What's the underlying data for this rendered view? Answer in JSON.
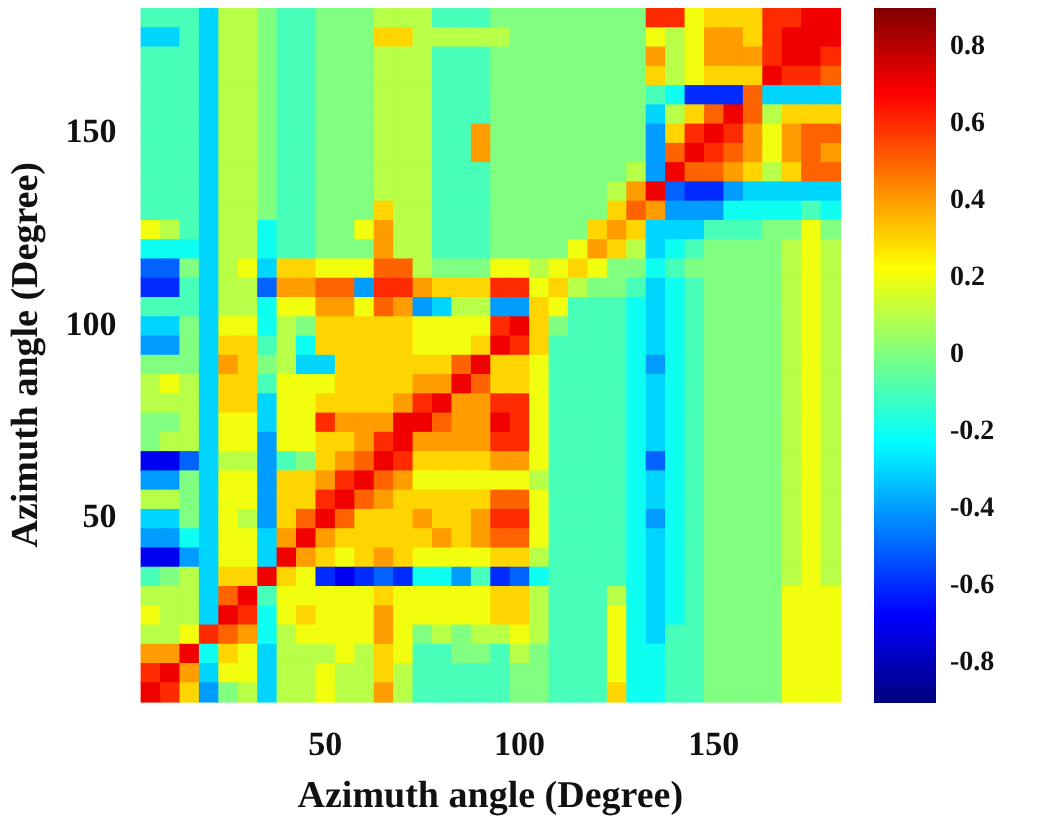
{
  "chart_data": {
    "type": "heatmap",
    "xlabel": "Azimuth angle (Degree)",
    "ylabel": "Azimuth angle (Degree)",
    "categories": [
      null,
      null,
      null,
      null,
      null,
      null,
      null,
      null,
      null,
      "50",
      null,
      null,
      null,
      null,
      null,
      null,
      null,
      null,
      null,
      "100",
      null,
      null,
      null,
      null,
      null,
      null,
      null,
      null,
      null,
      "150",
      null,
      null,
      null,
      null,
      null,
      null
    ],
    "y_categories": [
      null,
      null,
      null,
      null,
      null,
      null,
      "150",
      null,
      null,
      null,
      null,
      null,
      null,
      null,
      null,
      null,
      "100",
      null,
      null,
      null,
      null,
      null,
      null,
      null,
      null,
      null,
      "50",
      null,
      null,
      null,
      null,
      null,
      null,
      null,
      null,
      null
    ],
    "clim": [
      -0.9,
      0.9
    ],
    "cticks": [
      0.8,
      0.6,
      0.4,
      0.2,
      0,
      -0.2,
      -0.4,
      -0.6,
      -0.8
    ],
    "cells": [
      [
        -0.1,
        -0.1,
        -0.1,
        -0.3,
        0.1,
        0.1,
        0,
        -0.1,
        -0.1,
        0,
        0,
        0,
        0.1,
        0.1,
        0.1,
        -0.1,
        -0.1,
        -0.1,
        0,
        0,
        0,
        0,
        0,
        0,
        0,
        0,
        0.6,
        0.6,
        0.2,
        0.3,
        0.3,
        0.3,
        0.6,
        0.6,
        0.7,
        0.7
      ],
      [
        -0.3,
        -0.3,
        -0.1,
        -0.3,
        0.1,
        0.1,
        0,
        -0.1,
        -0.1,
        0,
        0,
        0,
        0.3,
        0.3,
        0.1,
        0.1,
        0.1,
        0.1,
        0.1,
        0,
        0,
        0,
        0,
        0,
        0,
        0,
        0.2,
        0.1,
        0.2,
        0.4,
        0.4,
        0.3,
        0.6,
        0.7,
        0.7,
        0.7
      ],
      [
        -0.1,
        -0.1,
        -0.1,
        -0.3,
        0.1,
        0.1,
        0,
        -0.1,
        -0.1,
        0,
        0,
        0,
        0.1,
        0.1,
        0.1,
        -0.1,
        -0.1,
        -0.1,
        0,
        0,
        0,
        0,
        0,
        0,
        0,
        0,
        0.4,
        0.1,
        0.2,
        0.4,
        0.4,
        0.4,
        0.6,
        0.7,
        0.7,
        0.6
      ],
      [
        -0.1,
        -0.1,
        -0.1,
        -0.3,
        0.1,
        0.1,
        0,
        -0.1,
        -0.1,
        0,
        0,
        0,
        0.1,
        0.1,
        0.1,
        -0.1,
        -0.1,
        -0.1,
        0,
        0,
        0,
        0,
        0,
        0,
        0,
        0,
        0.3,
        0.1,
        0.2,
        0.3,
        0.3,
        0.3,
        0.7,
        0.6,
        0.6,
        0.5
      ],
      [
        -0.1,
        -0.1,
        -0.1,
        -0.3,
        0.1,
        0.1,
        0,
        -0.1,
        -0.1,
        0,
        0,
        0,
        0.1,
        0.1,
        0.1,
        -0.1,
        -0.1,
        -0.1,
        0,
        0,
        0,
        0,
        0,
        0,
        0,
        0,
        -0.1,
        -0.2,
        -0.6,
        -0.6,
        -0.6,
        0.5,
        -0.3,
        -0.3,
        -0.3,
        -0.3
      ],
      [
        -0.1,
        -0.1,
        -0.1,
        -0.3,
        0.1,
        0.1,
        0,
        -0.1,
        -0.1,
        0,
        0,
        0,
        0.1,
        0.1,
        0.1,
        -0.1,
        -0.1,
        -0.1,
        0,
        0,
        0,
        0,
        0,
        0,
        0,
        0,
        -0.3,
        0.1,
        0.3,
        0.5,
        0.7,
        0.5,
        0.1,
        0.3,
        0.3,
        0.3
      ],
      [
        -0.1,
        -0.1,
        -0.1,
        -0.3,
        0.1,
        0.1,
        0,
        -0.1,
        -0.1,
        0,
        0,
        0,
        0.1,
        0.1,
        0.1,
        -0.1,
        -0.1,
        0.4,
        0,
        0,
        0,
        0,
        0,
        0,
        0,
        0,
        -0.4,
        0.3,
        0.6,
        0.7,
        0.6,
        0.4,
        0.2,
        0.4,
        0.5,
        0.5
      ],
      [
        -0.1,
        -0.1,
        -0.1,
        -0.3,
        0.1,
        0.1,
        0,
        -0.1,
        -0.1,
        0,
        0,
        0,
        0.1,
        0.1,
        0.1,
        -0.1,
        -0.1,
        0.4,
        0,
        0,
        0,
        0,
        0,
        0,
        0,
        0,
        -0.4,
        0.5,
        0.7,
        0.6,
        0.5,
        0.4,
        0.2,
        0.4,
        0.5,
        0.4
      ],
      [
        -0.1,
        -0.1,
        -0.1,
        -0.3,
        0.1,
        0.1,
        0,
        -0.1,
        -0.1,
        0,
        0,
        0,
        0.1,
        0.1,
        0.1,
        -0.1,
        -0.1,
        -0.1,
        0,
        0,
        0,
        0,
        0,
        0,
        0,
        0.1,
        -0.4,
        0.7,
        0.5,
        0.5,
        0.4,
        0.3,
        0.1,
        0.3,
        0.5,
        0.5
      ],
      [
        -0.1,
        -0.1,
        -0.1,
        -0.3,
        0.1,
        0.1,
        0,
        -0.1,
        -0.1,
        0,
        0,
        0,
        0.1,
        0.1,
        0.1,
        -0.1,
        -0.1,
        -0.1,
        0,
        0,
        0,
        0,
        0,
        0,
        0.1,
        0.4,
        0.7,
        -0.5,
        -0.6,
        -0.6,
        -0.4,
        -0.3,
        -0.3,
        -0.3,
        -0.3,
        -0.3
      ],
      [
        -0.1,
        -0.1,
        -0.1,
        -0.3,
        0.1,
        0.1,
        0,
        -0.1,
        -0.1,
        0,
        0,
        0,
        0.3,
        0.1,
        0.1,
        -0.1,
        -0.1,
        -0.1,
        0,
        0,
        0,
        0,
        0,
        0,
        0.3,
        0.5,
        0.4,
        -0.4,
        -0.4,
        -0.4,
        -0.2,
        -0.2,
        -0.2,
        -0.2,
        -0.1,
        -0.2
      ],
      [
        0.2,
        0.1,
        -0.1,
        -0.3,
        0.1,
        0.1,
        -0.2,
        -0.1,
        -0.1,
        0,
        0,
        0.2,
        0.4,
        0.1,
        0.1,
        -0.1,
        -0.1,
        -0.1,
        0,
        0,
        0,
        0,
        0,
        0.3,
        0.4,
        0.3,
        -0.3,
        -0.3,
        -0.3,
        -0.1,
        -0.1,
        -0.1,
        0,
        0,
        0.2,
        0
      ],
      [
        -0.2,
        -0.2,
        -0.2,
        -0.3,
        0.1,
        0.1,
        -0.2,
        -0.1,
        -0.1,
        0,
        0,
        0,
        0.4,
        0.1,
        0.1,
        -0.1,
        -0.1,
        -0.1,
        0,
        0,
        0,
        0,
        0.2,
        0.4,
        0.3,
        0.1,
        -0.3,
        -0.2,
        -0.1,
        0,
        0,
        0,
        0,
        0.1,
        0.2,
        0.1
      ],
      [
        -0.5,
        -0.5,
        0,
        -0.3,
        0.1,
        0.2,
        -0.3,
        0.3,
        0.3,
        0.2,
        0.2,
        0.2,
        0.5,
        0.5,
        0.1,
        0,
        0,
        0,
        0.2,
        0.2,
        0.1,
        0.2,
        0.3,
        0.2,
        0,
        0,
        -0.2,
        -0.1,
        0,
        0,
        0,
        0,
        0,
        0.1,
        0.2,
        0.1
      ],
      [
        -0.6,
        -0.6,
        -0.1,
        -0.3,
        0.1,
        0.1,
        -0.5,
        0.4,
        0.4,
        0.5,
        0.5,
        -0.4,
        0.6,
        0.6,
        0.4,
        0.3,
        0.3,
        0.3,
        0.6,
        0.6,
        0.2,
        0.3,
        0.1,
        0,
        0,
        -0.1,
        -0.3,
        -0.2,
        -0.1,
        0,
        0,
        0,
        0,
        0.1,
        0.2,
        0.1
      ],
      [
        -0.1,
        -0.1,
        -0.1,
        -0.3,
        0.1,
        0.1,
        -0.2,
        0.2,
        0.2,
        0.4,
        0.4,
        0.2,
        0.5,
        0.4,
        -0.4,
        -0.3,
        0.1,
        0.1,
        -0.4,
        -0.4,
        0.3,
        0.2,
        -0.1,
        -0.1,
        -0.1,
        -0.2,
        -0.3,
        -0.2,
        -0.1,
        0,
        0,
        0,
        0,
        0.1,
        0.2,
        0.1
      ],
      [
        -0.3,
        -0.3,
        0,
        -0.3,
        0.2,
        0.2,
        -0.2,
        0.1,
        0,
        0.3,
        0.3,
        0.3,
        0.3,
        0.3,
        0.2,
        0.2,
        0.2,
        0.2,
        0.6,
        0.7,
        0.3,
        0,
        -0.1,
        -0.1,
        -0.1,
        -0.2,
        -0.3,
        -0.2,
        -0.1,
        0,
        0,
        0,
        0,
        0.1,
        0.2,
        0.1
      ],
      [
        -0.4,
        -0.4,
        0,
        -0.3,
        0.3,
        0.3,
        -0.1,
        0.1,
        -0.2,
        0.3,
        0.3,
        0.3,
        0.3,
        0.3,
        0.2,
        0.2,
        0.2,
        0.3,
        0.7,
        0.6,
        0.3,
        -0.1,
        -0.1,
        -0.1,
        -0.1,
        -0.2,
        -0.3,
        -0.2,
        -0.1,
        0,
        0,
        0,
        0,
        0.1,
        0.2,
        0.1
      ],
      [
        0,
        0,
        0,
        -0.3,
        0.4,
        0.3,
        0,
        0.1,
        -0.3,
        -0.3,
        0.3,
        0.3,
        0.3,
        0.3,
        0.3,
        0.3,
        0.5,
        0.7,
        0.3,
        0.3,
        0.2,
        -0.1,
        -0.1,
        -0.1,
        -0.1,
        -0.2,
        -0.4,
        -0.2,
        -0.1,
        0,
        0,
        0,
        0,
        0.1,
        0.2,
        0.1
      ],
      [
        0.1,
        0.2,
        0.1,
        -0.3,
        0.3,
        0.3,
        -0.1,
        0.2,
        0.2,
        0.2,
        0.3,
        0.3,
        0.3,
        0.3,
        0.4,
        0.4,
        0.7,
        0.5,
        0.3,
        0.3,
        0.2,
        -0.1,
        -0.1,
        -0.1,
        -0.1,
        -0.2,
        -0.3,
        -0.2,
        -0.1,
        0,
        0,
        0,
        0,
        0.1,
        0.2,
        0.1
      ],
      [
        0.1,
        0.1,
        0.1,
        -0.3,
        0.3,
        0.3,
        -0.3,
        0.2,
        0.2,
        0.3,
        0.3,
        0.3,
        0.3,
        0.4,
        0.6,
        0.7,
        0.4,
        0.4,
        0.6,
        0.6,
        0.2,
        -0.1,
        -0.1,
        -0.1,
        -0.1,
        -0.2,
        -0.3,
        -0.2,
        -0.1,
        0,
        0,
        0,
        0,
        0.1,
        0.2,
        0.1
      ],
      [
        0,
        0,
        0.1,
        -0.3,
        0.2,
        0.2,
        -0.3,
        0.2,
        0.2,
        0.6,
        0.4,
        0.4,
        0.4,
        0.7,
        0.7,
        0.5,
        0.4,
        0.4,
        0.7,
        0.6,
        0.2,
        -0.1,
        -0.1,
        -0.1,
        -0.1,
        -0.2,
        -0.3,
        -0.2,
        -0.1,
        0,
        0,
        0,
        0,
        0.1,
        0.2,
        0.1
      ],
      [
        0,
        0.1,
        0.1,
        -0.3,
        0.2,
        0.2,
        -0.4,
        0.2,
        0.2,
        0.3,
        0.3,
        0.4,
        0.6,
        0.7,
        0.4,
        0.4,
        0.4,
        0.4,
        0.6,
        0.6,
        0.2,
        -0.1,
        -0.1,
        -0.1,
        -0.1,
        -0.2,
        -0.3,
        -0.2,
        -0.1,
        0,
        0,
        0,
        0,
        0.1,
        0.2,
        0.1
      ],
      [
        -0.7,
        -0.7,
        -0.5,
        -0.3,
        0.1,
        0.1,
        -0.4,
        -0.1,
        0,
        0.3,
        0.4,
        0.5,
        0.7,
        0.6,
        0.3,
        0.3,
        0.3,
        0.3,
        0.4,
        0.4,
        0.2,
        -0.1,
        -0.1,
        -0.1,
        -0.1,
        -0.2,
        -0.5,
        -0.2,
        -0.1,
        0,
        0,
        0,
        0,
        0.1,
        0.2,
        0.1
      ],
      [
        -0.4,
        -0.4,
        0,
        -0.3,
        0.2,
        0.2,
        -0.4,
        0.3,
        0.3,
        0.4,
        0.6,
        0.7,
        0.5,
        0.4,
        0.2,
        0.2,
        0.2,
        0.2,
        0.2,
        0.2,
        0.1,
        -0.1,
        -0.1,
        -0.1,
        -0.1,
        -0.2,
        -0.3,
        -0.2,
        -0.1,
        0,
        0,
        0,
        0,
        0.1,
        0.2,
        0.1
      ],
      [
        0.1,
        0.1,
        0,
        -0.3,
        0.2,
        0.2,
        -0.4,
        0.3,
        0.3,
        0.6,
        0.7,
        0.5,
        0.4,
        0.3,
        0.3,
        0.3,
        0.3,
        0.3,
        0.5,
        0.5,
        0.2,
        -0.1,
        -0.1,
        -0.1,
        -0.1,
        -0.2,
        -0.3,
        -0.2,
        -0.1,
        0,
        0,
        0,
        0,
        0.1,
        0.2,
        0.1
      ],
      [
        -0.3,
        -0.3,
        0,
        -0.3,
        0.2,
        0.1,
        -0.4,
        0.3,
        0.5,
        0.7,
        0.5,
        0.3,
        0.3,
        0.3,
        0.4,
        0.3,
        0.3,
        0.4,
        0.6,
        0.6,
        0.2,
        -0.1,
        -0.1,
        -0.1,
        -0.1,
        -0.2,
        -0.4,
        -0.2,
        -0.1,
        0,
        0,
        0,
        0,
        0.1,
        0.2,
        0.1
      ],
      [
        -0.4,
        -0.4,
        -0.2,
        -0.3,
        0.2,
        0.2,
        -0.3,
        0.4,
        0.7,
        0.4,
        0.3,
        0.3,
        0.3,
        0.3,
        0.3,
        0.4,
        0.3,
        0.4,
        0.5,
        0.5,
        0.2,
        -0.1,
        -0.1,
        -0.1,
        -0.1,
        -0.2,
        -0.3,
        -0.2,
        -0.1,
        0,
        0,
        0,
        0,
        0.1,
        0.2,
        0.1
      ],
      [
        -0.7,
        -0.7,
        -0.4,
        -0.3,
        0.2,
        0.2,
        -0.3,
        0.7,
        0.4,
        0.3,
        0.2,
        0.3,
        0.4,
        0.3,
        0.2,
        0.2,
        0.2,
        0.2,
        0.3,
        0.3,
        0.1,
        -0.1,
        -0.1,
        -0.1,
        -0.1,
        -0.2,
        -0.3,
        -0.2,
        -0.1,
        0,
        0,
        0,
        0,
        0.1,
        0.2,
        0.1
      ],
      [
        -0.1,
        0,
        0.1,
        -0.3,
        0.3,
        0.3,
        0.7,
        0.3,
        0.2,
        -0.6,
        -0.7,
        -0.6,
        -0.5,
        -0.6,
        -0.2,
        -0.2,
        -0.4,
        -0.1,
        -0.6,
        -0.5,
        -0.2,
        -0.1,
        -0.1,
        -0.1,
        -0.1,
        -0.2,
        -0.3,
        -0.2,
        -0.1,
        0,
        0,
        0,
        0,
        0.1,
        0.2,
        0.1
      ],
      [
        0.1,
        0.1,
        0.1,
        -0.3,
        0.5,
        0.7,
        -0.1,
        0.2,
        0.2,
        0.2,
        0.2,
        0.2,
        0.3,
        0.2,
        0.2,
        0.2,
        0.2,
        0.2,
        0.3,
        0.3,
        0.1,
        -0.1,
        -0.1,
        -0.1,
        0.1,
        -0.2,
        -0.3,
        -0.2,
        -0.1,
        0,
        0,
        0,
        0,
        0.2,
        0.2,
        0.2
      ],
      [
        0.2,
        0.1,
        0.1,
        -0.3,
        0.7,
        0.6,
        -0.2,
        0.2,
        0.3,
        0.2,
        0.2,
        0.2,
        0.4,
        0.2,
        0.2,
        0.2,
        0.2,
        0.2,
        0.3,
        0.3,
        0.1,
        -0.1,
        -0.1,
        -0.1,
        0.2,
        -0.2,
        -0.3,
        -0.2,
        -0.1,
        0,
        0,
        0,
        0,
        0.2,
        0.2,
        0.2
      ],
      [
        0.1,
        0.1,
        0.2,
        0.6,
        0.5,
        0.4,
        -0.2,
        0.1,
        0.2,
        0.2,
        0.2,
        0.2,
        0.4,
        0.2,
        0,
        0.1,
        0,
        0.1,
        0.1,
        0.2,
        0.1,
        -0.1,
        -0.1,
        -0.1,
        0.2,
        -0.2,
        -0.3,
        -0.1,
        -0.1,
        0,
        0,
        0,
        0,
        0.2,
        0.2,
        0.2
      ],
      [
        0.4,
        0.4,
        0.7,
        -0.2,
        0.3,
        0.2,
        -0.3,
        0.1,
        0.1,
        0.1,
        0.2,
        0.1,
        0.3,
        0.2,
        -0.1,
        -0.1,
        0,
        0,
        -0.1,
        0.1,
        0,
        -0.1,
        -0.1,
        -0.1,
        0.2,
        -0.2,
        -0.2,
        -0.1,
        -0.1,
        0,
        0,
        0,
        0,
        0.2,
        0.2,
        0.2
      ],
      [
        0.6,
        0.7,
        0.4,
        -0.3,
        0.2,
        0.2,
        -0.3,
        0.1,
        0.1,
        0.2,
        0.1,
        0.1,
        0.3,
        0.1,
        -0.1,
        -0.1,
        -0.1,
        -0.1,
        -0.1,
        0,
        0,
        -0.1,
        -0.1,
        -0.1,
        0.2,
        -0.2,
        -0.2,
        -0.1,
        -0.1,
        0,
        0,
        0,
        0,
        0.2,
        0.2,
        0.2
      ],
      [
        0.7,
        0.6,
        0.3,
        -0.4,
        0,
        0.1,
        -0.3,
        0.1,
        0.1,
        0.2,
        0.1,
        0.1,
        0.4,
        0.1,
        -0.1,
        -0.1,
        -0.1,
        -0.1,
        -0.1,
        0,
        0,
        -0.1,
        -0.1,
        -0.1,
        0.3,
        -0.2,
        -0.2,
        -0.1,
        -0.1,
        0,
        0,
        0,
        0,
        0.2,
        0.2,
        0.2
      ]
    ]
  }
}
